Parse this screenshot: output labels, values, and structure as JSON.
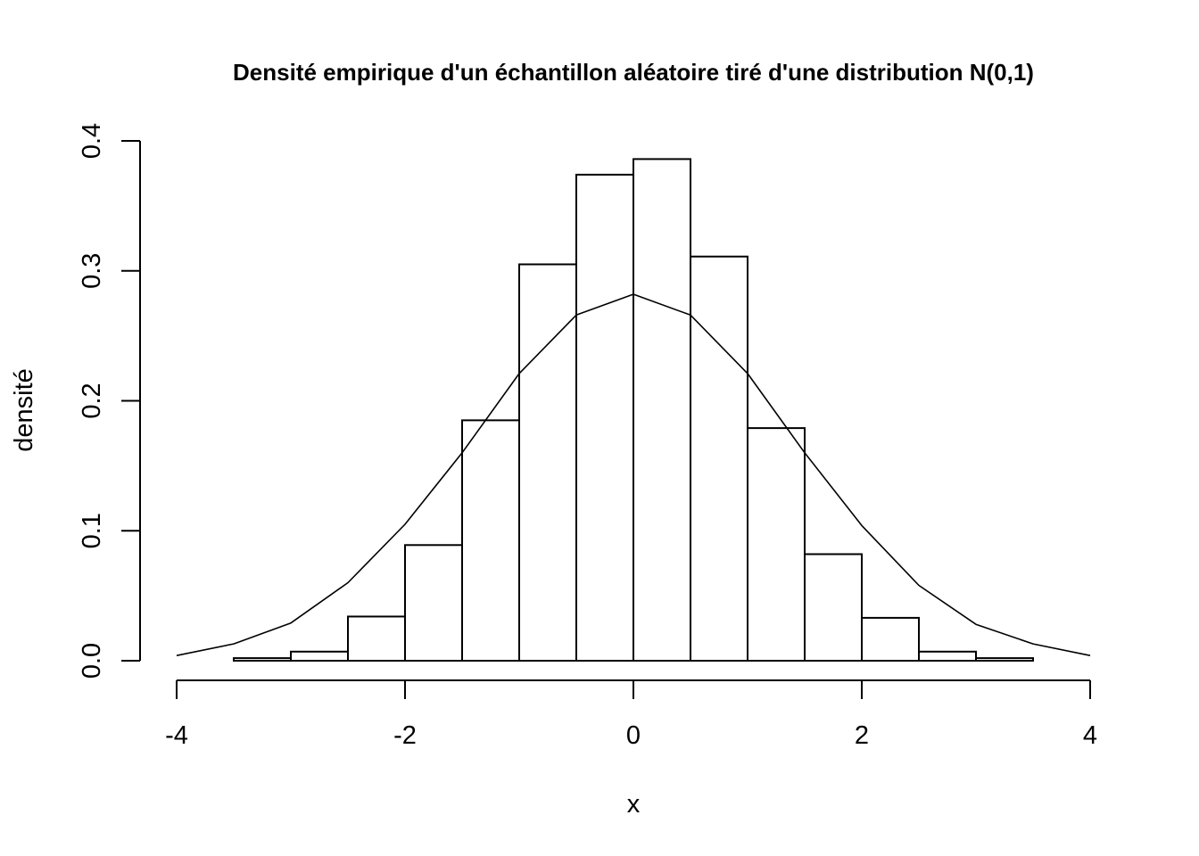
{
  "chart_data": {
    "type": "bar",
    "title": "Densité empirique d'un échantillon aléatoire tiré d'une distribution N(0,1)",
    "xlabel": "x",
    "ylabel": "densité",
    "xlim": [
      -4,
      4
    ],
    "ylim": [
      0,
      0.4
    ],
    "x_ticks": [
      -4,
      -2,
      0,
      2,
      4
    ],
    "y_ticks": [
      0.0,
      0.1,
      0.2,
      0.3,
      0.4
    ],
    "x_tick_labels": [
      "-4",
      "-2",
      "0",
      "2",
      "4"
    ],
    "y_tick_labels": [
      "0.0",
      "0.1",
      "0.2",
      "0.3",
      "0.4"
    ],
    "grid": false,
    "histogram": {
      "bin_edges": [
        -4.0,
        -3.5,
        -3.0,
        -2.5,
        -2.0,
        -1.5,
        -1.0,
        -0.5,
        0.0,
        0.5,
        1.0,
        1.5,
        2.0,
        2.5,
        3.0,
        3.5,
        4.0
      ],
      "density": [
        0.0,
        0.002,
        0.007,
        0.034,
        0.089,
        0.185,
        0.305,
        0.374,
        0.386,
        0.311,
        0.179,
        0.082,
        0.033,
        0.007,
        0.002,
        0.0
      ]
    },
    "curve": {
      "x": [
        -4.0,
        -3.5,
        -3.0,
        -2.5,
        -2.0,
        -1.5,
        -1.0,
        -0.5,
        0.0,
        0.5,
        1.0,
        1.5,
        2.0,
        2.5,
        3.0,
        3.5,
        4.0
      ],
      "y": [
        0.004,
        0.013,
        0.029,
        0.06,
        0.105,
        0.16,
        0.221,
        0.266,
        0.282,
        0.266,
        0.221,
        0.16,
        0.104,
        0.058,
        0.028,
        0.013,
        0.004
      ]
    }
  }
}
